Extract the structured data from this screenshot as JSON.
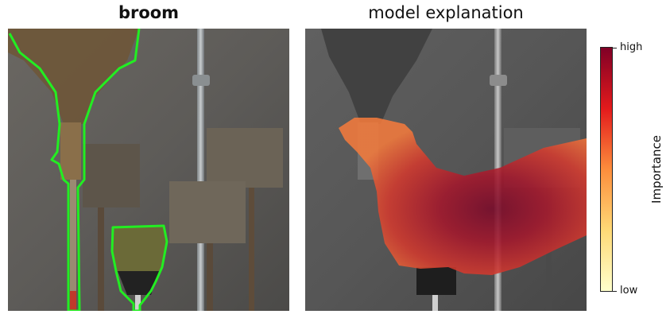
{
  "panels": {
    "left_title": "broom",
    "right_title": "model explanation"
  },
  "colorbar": {
    "label": "Importance",
    "tick_high": "high",
    "tick_low": "low",
    "colors": [
      "#ffffcc",
      "#fed976",
      "#fd8d3c",
      "#e31a1c",
      "#800026"
    ]
  },
  "colors": {
    "outline": "#22ee22",
    "wall": "#5a5a58"
  }
}
